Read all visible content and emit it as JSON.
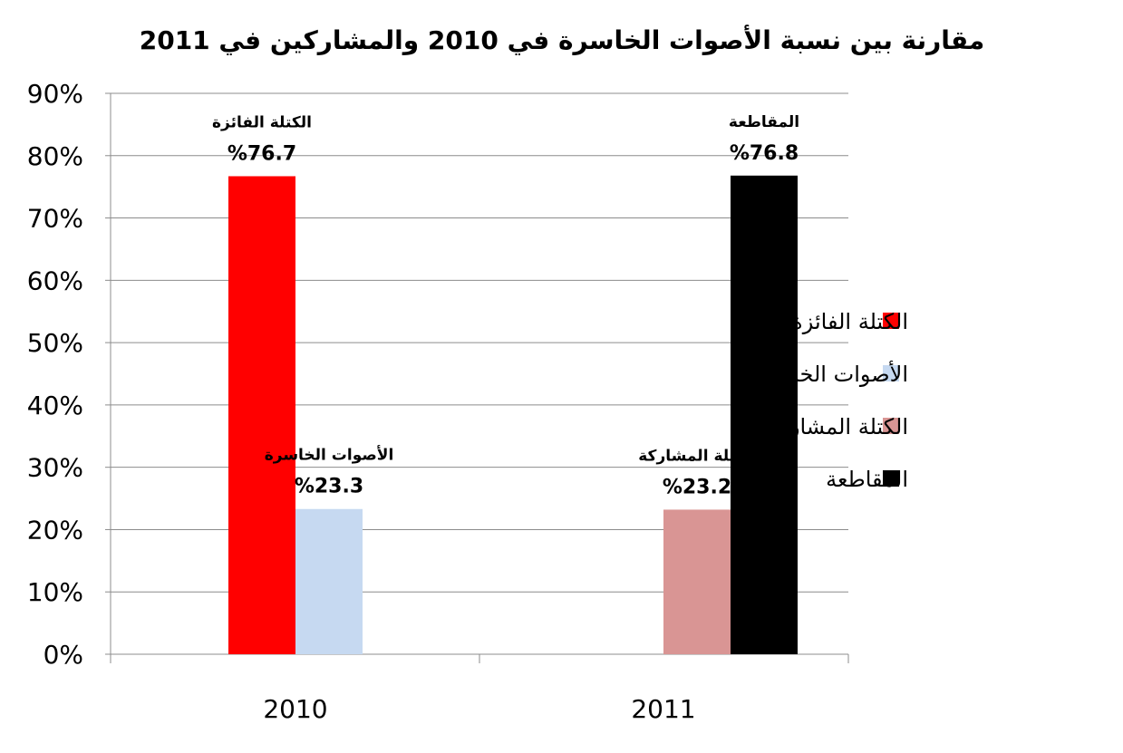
{
  "chart_data": {
    "type": "bar",
    "title": "مقارنة بين نسبة الأصوات الخاسرة في 2010 والمشاركين في 2011",
    "categories": [
      "2010",
      "2011"
    ],
    "series": [
      {
        "name": "الكتلة الفائزة",
        "color": "#ff0000",
        "values": [
          76.7,
          null
        ]
      },
      {
        "name": "الأصوات الخاسرة",
        "color": "#c6d9f1",
        "values": [
          23.3,
          null
        ]
      },
      {
        "name": "الكتلة المشاركة",
        "color": "#d99594",
        "values": [
          null,
          23.2
        ]
      },
      {
        "name": "المقاطعة",
        "color": "#000000",
        "values": [
          null,
          76.8
        ]
      }
    ],
    "data_labels": [
      {
        "series": 0,
        "category": 0,
        "name": "الكتلة الفائزة",
        "value": "%76.7"
      },
      {
        "series": 1,
        "category": 0,
        "name": "الأصوات الخاسرة",
        "value": "%23.3"
      },
      {
        "series": 2,
        "category": 1,
        "name": "الكتلة المشاركة",
        "value": "%23.2"
      },
      {
        "series": 3,
        "category": 1,
        "name": "المقاطعة",
        "value": "%76.8"
      }
    ],
    "y_ticks": [
      "0%",
      "10%",
      "20%",
      "30%",
      "40%",
      "50%",
      "60%",
      "70%",
      "80%",
      "90%"
    ],
    "ylim": [
      0,
      90
    ],
    "grid": true,
    "legend_position": "right",
    "xlabel": "",
    "ylabel": ""
  }
}
